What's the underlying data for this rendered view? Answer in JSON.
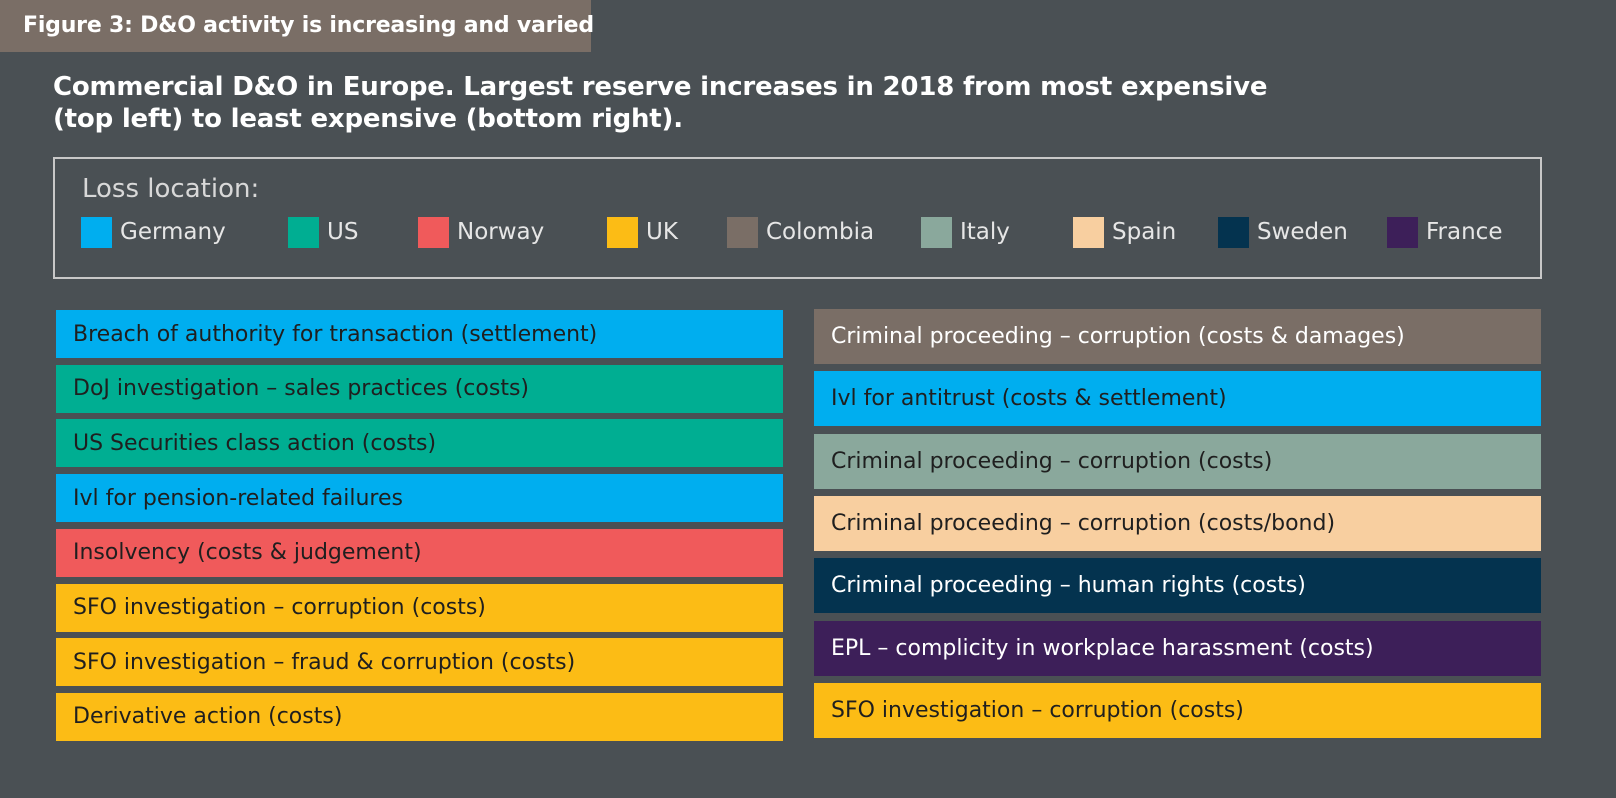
{
  "figure_label": "Figure 3: D&O activity is increasing and varied",
  "subtitle_line1": "Commercial D&O in Europe. Largest reserve increases in 2018 from most expensive",
  "subtitle_line2": "(top left) to least expensive (bottom right).",
  "legend": {
    "label": "Loss location:",
    "items": [
      {
        "name": "Germany",
        "color": "#00aeef"
      },
      {
        "name": "US",
        "color": "#00ae92"
      },
      {
        "name": "Norway",
        "color": "#f05a5b"
      },
      {
        "name": "UK",
        "color": "#fcbc15"
      },
      {
        "name": "Colombia",
        "color": "#7a6e66"
      },
      {
        "name": "Italy",
        "color": "#8aa89c"
      },
      {
        "name": "Spain",
        "color": "#f8cfa0"
      },
      {
        "name": "Sweden",
        "color": "#04334f"
      },
      {
        "name": "France",
        "color": "#3d1f59"
      }
    ]
  },
  "left_column": [
    {
      "text": "Breach of authority for transaction (settlement)",
      "location": "Germany"
    },
    {
      "text": "DoJ investigation – sales practices (costs)",
      "location": "US"
    },
    {
      "text": "US Securities class action (costs)",
      "location": "US"
    },
    {
      "text": "Ivl for pension-related failures",
      "location": "Germany"
    },
    {
      "text": "Insolvency (costs & judgement)",
      "location": "Norway"
    },
    {
      "text": "SFO investigation – corruption (costs)",
      "location": "UK"
    },
    {
      "text": "SFO investigation – fraud & corruption (costs)",
      "location": "UK"
    },
    {
      "text": "Derivative action (costs)",
      "location": "UK"
    }
  ],
  "right_column": [
    {
      "text": "Criminal proceeding – corruption (costs & damages)",
      "location": "Colombia"
    },
    {
      "text": "Ivl for antitrust (costs & settlement)",
      "location": "Germany"
    },
    {
      "text": "Criminal proceeding – corruption (costs)",
      "location": "Italy"
    },
    {
      "text": "Criminal proceeding – corruption (costs/bond)",
      "location": "Spain"
    },
    {
      "text": "Criminal proceeding – human rights (costs)",
      "location": "Sweden"
    },
    {
      "text": "EPL – complicity in workplace harassment (costs)",
      "location": "France"
    },
    {
      "text": "SFO investigation – corruption (costs)",
      "location": "UK"
    }
  ]
}
